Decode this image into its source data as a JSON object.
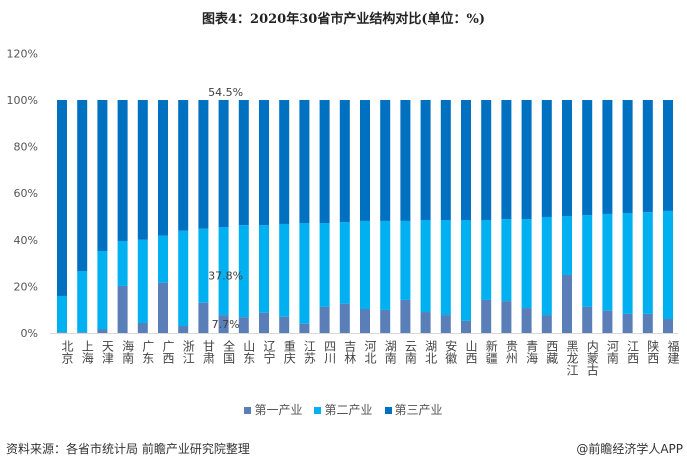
{
  "chart_data": {
    "type": "bar",
    "stacked": true,
    "title": "图表4：2020年30省市产业结构对比(单位：%)",
    "categories": [
      "北京",
      "上海",
      "天津",
      "海南",
      "广东",
      "广西",
      "浙江",
      "甘肃",
      "全国",
      "山东",
      "辽宁",
      "重庆",
      "江苏",
      "四川",
      "吉林",
      "河北",
      "湖南",
      "云南",
      "湖北",
      "安徽",
      "山西",
      "新疆",
      "贵州",
      "青海",
      "西藏",
      "黑龙江",
      "内蒙古",
      "河南",
      "江西",
      "陕西",
      "福建"
    ],
    "series": [
      {
        "name": "第一产业",
        "color": "#5a7fb8",
        "values": [
          0.3,
          0.3,
          1.5,
          20.2,
          4.3,
          21.6,
          3.0,
          13.0,
          7.7,
          6.8,
          8.7,
          7.0,
          4.0,
          11.2,
          12.6,
          10.3,
          9.9,
          14.2,
          9.0,
          7.7,
          5.2,
          14.2,
          13.7,
          10.7,
          7.7,
          24.9,
          11.2,
          9.6,
          8.2,
          8.2,
          6.0
        ]
      },
      {
        "name": "第二产业",
        "color": "#00b0f0",
        "values": [
          15.6,
          26.3,
          33.7,
          19.3,
          35.7,
          20.2,
          40.9,
          31.8,
          37.8,
          39.5,
          37.6,
          39.8,
          43.2,
          36.0,
          35.0,
          37.8,
          38.2,
          33.9,
          39.5,
          40.8,
          43.3,
          34.3,
          35.2,
          38.2,
          42.1,
          25.3,
          39.4,
          41.5,
          43.3,
          43.7,
          46.4
        ]
      },
      {
        "name": "第三产业",
        "color": "#0070c0",
        "values": [
          84.1,
          73.4,
          64.8,
          60.5,
          60.0,
          58.2,
          56.1,
          55.2,
          54.5,
          53.7,
          53.7,
          53.2,
          52.8,
          52.8,
          52.4,
          51.9,
          51.9,
          51.9,
          51.5,
          51.5,
          51.5,
          51.5,
          51.1,
          51.1,
          50.2,
          49.8,
          49.4,
          48.9,
          48.5,
          48.1,
          47.6
        ]
      }
    ],
    "data_labels": [
      {
        "category": "全国",
        "series": "第三产业",
        "text": "54.5%"
      },
      {
        "category": "全国",
        "series": "第二产业",
        "text": "37.8%"
      },
      {
        "category": "全国",
        "series": "第一产业",
        "text": "7.7%"
      }
    ],
    "ylim": [
      0,
      120
    ],
    "yticks": [
      "0%",
      "20%",
      "40%",
      "60%",
      "80%",
      "100%",
      "120%"
    ],
    "grid": false,
    "legend": "bottom"
  },
  "footer": {
    "source": "资料来源：各省市统计局 前瞻产业研究院整理",
    "brand": "@前瞻经济学人APP"
  }
}
